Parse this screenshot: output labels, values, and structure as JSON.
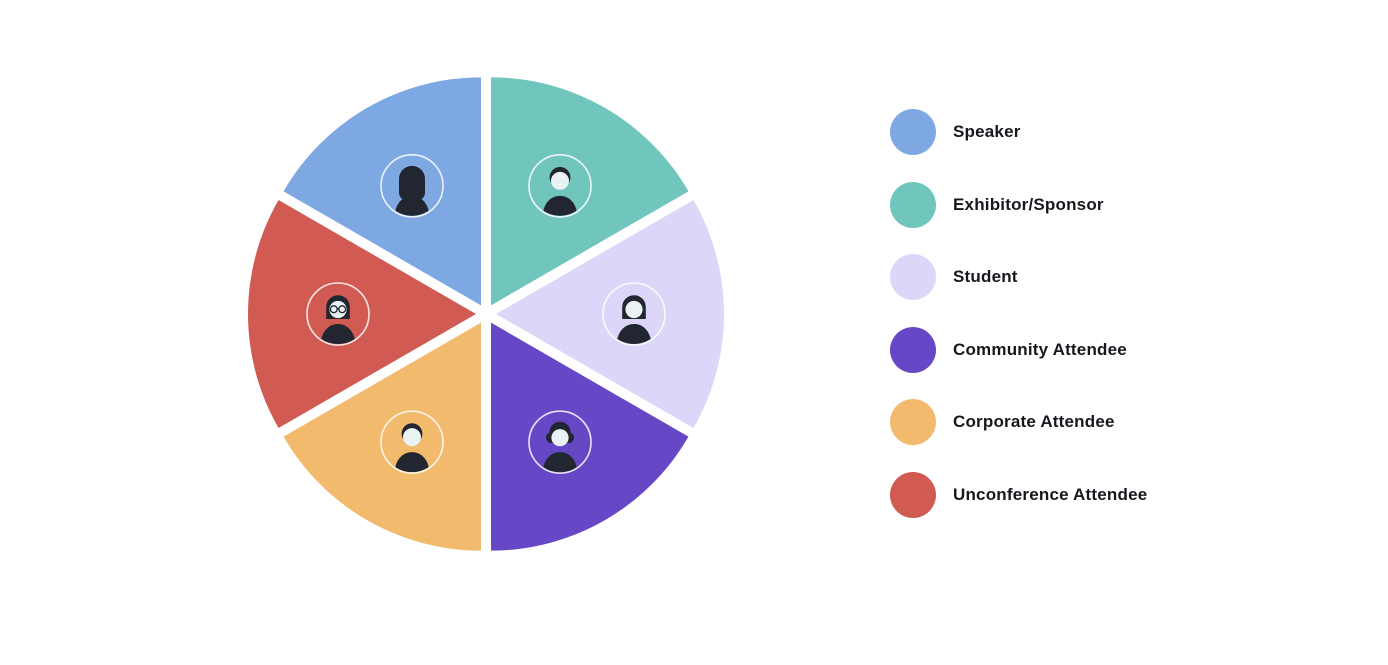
{
  "chart_data": {
    "type": "pie",
    "title": "",
    "equal_segments": true,
    "start_angle_deg": 90,
    "direction": "clockwise",
    "legend_position": "right",
    "categories": [
      "Speaker",
      "Exhibitor/Sponsor",
      "Student",
      "Community Attendee",
      "Corporate Attendee",
      "Unconference Attendee"
    ],
    "values": [
      1,
      1,
      1,
      1,
      1,
      1
    ],
    "segments": [
      {
        "label": "Speaker",
        "color": "#7DA8E2",
        "value": 1,
        "icon": "avatar-woman-long-hair-icon"
      },
      {
        "label": "Exhibitor/Sponsor",
        "color": "#70C5BD",
        "value": 1,
        "icon": "avatar-man-short-hair-icon"
      },
      {
        "label": "Student",
        "color": "#DCD6F8",
        "value": 1,
        "icon": "avatar-woman-bob-hair-icon"
      },
      {
        "label": "Community Attendee",
        "color": "#6648C6",
        "value": 1,
        "icon": "avatar-person-curly-hair-icon"
      },
      {
        "label": "Corporate Attendee",
        "color": "#F1BA6D",
        "value": 1,
        "icon": "avatar-man-short-hair-icon"
      },
      {
        "label": "Unconference Attendee",
        "color": "#D15B53",
        "value": 1,
        "icon": "avatar-woman-glasses-icon"
      }
    ],
    "clockwise_order_from_top": [
      "Exhibitor/Sponsor",
      "Student",
      "Community Attendee",
      "Corporate Attendee",
      "Unconference Attendee",
      "Speaker"
    ]
  },
  "avatar_colors": {
    "silhouette": "#212631",
    "face": "#E9F3F4",
    "ring": "#FFFFFF"
  }
}
